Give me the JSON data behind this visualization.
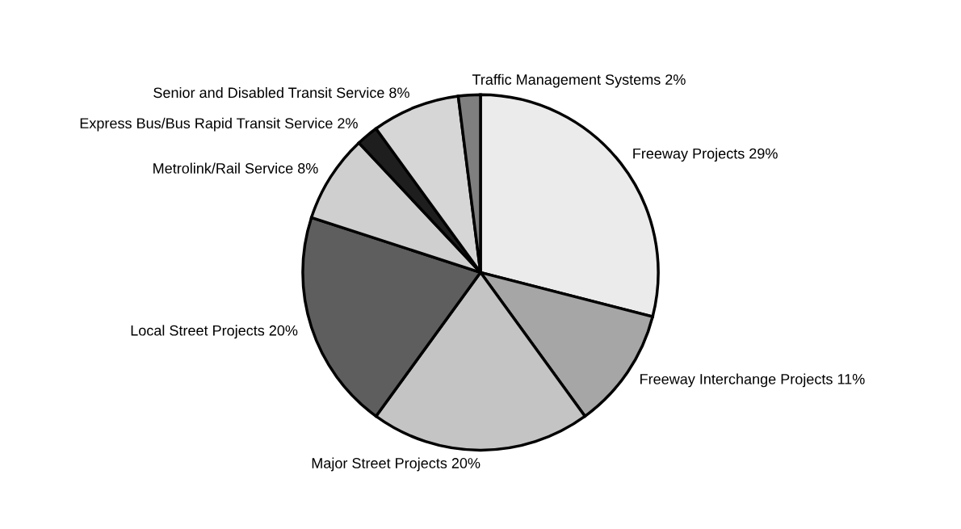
{
  "chart_data": {
    "type": "pie",
    "categories": [
      "Freeway Projects",
      "Freeway Interchange Projects",
      "Major Street Projects",
      "Local Street Projects",
      "Metrolink/Rail Service",
      "Express Bus/Bus Rapid Transit Service",
      "Senior and Disabled Transit Service",
      "Traffic Management Systems"
    ],
    "values": [
      29,
      11,
      20,
      20,
      8,
      2,
      8,
      2
    ],
    "value_labels": [
      "29%",
      "11%",
      "20%",
      "20%",
      "8%",
      "2%",
      "8%",
      "2%"
    ],
    "colors": [
      "#ebebeb",
      "#a6a6a6",
      "#c4c4c4",
      "#5e5e5e",
      "#cfcfcf",
      "#1e1e1e",
      "#d6d6d6",
      "#7f7f7f"
    ]
  }
}
